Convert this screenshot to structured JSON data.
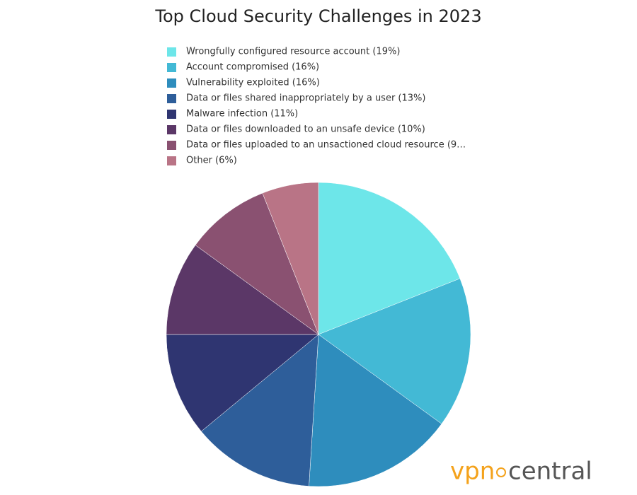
{
  "chart_data": {
    "type": "pie",
    "title": "Top Cloud Security Challenges in 2023",
    "categories": [
      "Wrongfully configured resource account (19%)",
      "Account compromised (16%)",
      "Vulnerability exploited (16%)",
      "Data or files shared inappropriately by a user (13%)",
      "Malware infection (11%)",
      "Data or files downloaded to an unsafe device (10%)",
      "Data or files uploaded to an unsactioned cloud resource (9…",
      "Other (6%)"
    ],
    "values": [
      19,
      16,
      16,
      13,
      11,
      10,
      9,
      6
    ],
    "colors": [
      "#6de6e9",
      "#43b9d5",
      "#2e8dbd",
      "#2e5e9a",
      "#2f3571",
      "#5b3767",
      "#8a5171",
      "#b97486"
    ],
    "legend": "top",
    "watermark": [
      "vpn",
      "central"
    ]
  }
}
